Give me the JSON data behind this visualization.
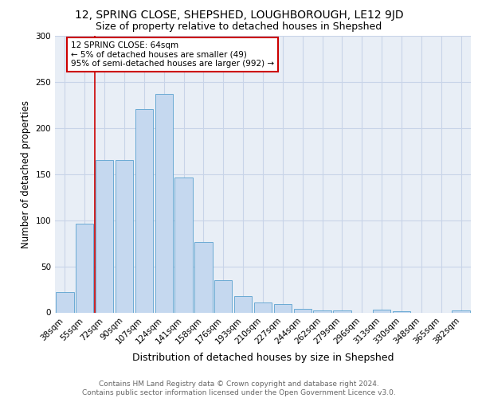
{
  "title1": "12, SPRING CLOSE, SHEPSHED, LOUGHBOROUGH, LE12 9JD",
  "title2": "Size of property relative to detached houses in Shepshed",
  "xlabel": "Distribution of detached houses by size in Shepshed",
  "ylabel": "Number of detached properties",
  "categories": [
    "38sqm",
    "55sqm",
    "72sqm",
    "90sqm",
    "107sqm",
    "124sqm",
    "141sqm",
    "158sqm",
    "176sqm",
    "193sqm",
    "210sqm",
    "227sqm",
    "244sqm",
    "262sqm",
    "279sqm",
    "296sqm",
    "313sqm",
    "330sqm",
    "348sqm",
    "365sqm",
    "382sqm"
  ],
  "values": [
    22,
    96,
    165,
    165,
    221,
    237,
    146,
    76,
    35,
    18,
    11,
    9,
    4,
    2,
    2,
    0,
    3,
    1,
    0,
    0,
    2
  ],
  "bar_color": "#c5d8ef",
  "bar_edge_color": "#6aaad4",
  "grid_color": "#c8d4e8",
  "background_color": "#e8eef6",
  "annotation_box_text": "12 SPRING CLOSE: 64sqm\n← 5% of detached houses are smaller (49)\n95% of semi-detached houses are larger (992) →",
  "annotation_box_color": "#ffffff",
  "annotation_box_edge_color": "#cc0000",
  "red_line_x": 1.5,
  "ylim": [
    0,
    300
  ],
  "yticks": [
    0,
    50,
    100,
    150,
    200,
    250,
    300
  ],
  "footnote": "Contains HM Land Registry data © Crown copyright and database right 2024.\nContains public sector information licensed under the Open Government Licence v3.0.",
  "title1_fontsize": 10,
  "title2_fontsize": 9,
  "xlabel_fontsize": 9,
  "ylabel_fontsize": 8.5,
  "tick_fontsize": 7.5,
  "footnote_fontsize": 6.5,
  "annotation_fontsize": 7.5
}
